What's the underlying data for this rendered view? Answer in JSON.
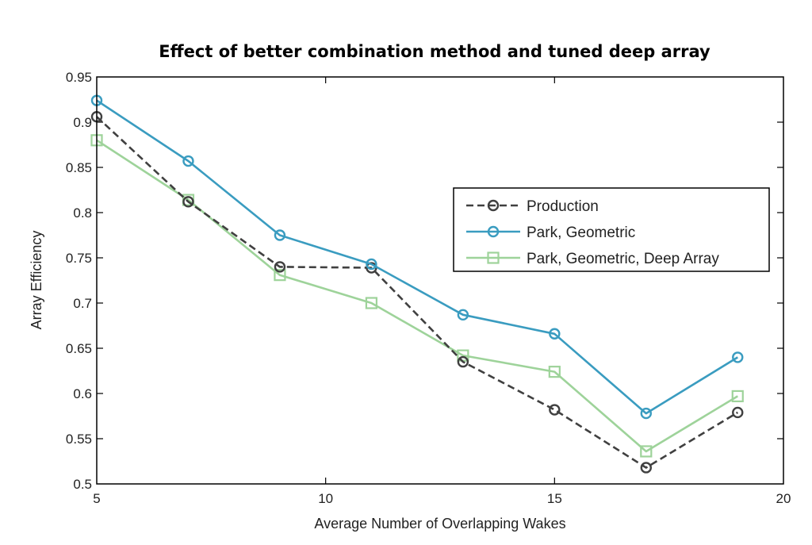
{
  "chart_data": {
    "type": "line",
    "title": "Effect of better combination method and tuned deep array",
    "xlabel": "Average Number of Overlapping Wakes",
    "ylabel": "Array Efficiency",
    "xlim": [
      5,
      20
    ],
    "ylim": [
      0.5,
      0.95
    ],
    "xticks": [
      5,
      10,
      15,
      20
    ],
    "xtick_labels": [
      "5",
      "10",
      "15",
      "20"
    ],
    "yticks": [
      0.5,
      0.55,
      0.6,
      0.65,
      0.7,
      0.75,
      0.8,
      0.85,
      0.9,
      0.95
    ],
    "ytick_labels": [
      "0.5",
      "0.55",
      "0.6",
      "0.65",
      "0.7",
      "0.75",
      "0.8",
      "0.85",
      "0.9",
      "0.95"
    ],
    "grid": false,
    "legend_position": "right",
    "x": [
      5,
      7,
      9,
      11,
      13,
      15,
      17,
      19
    ],
    "series": [
      {
        "name": "Production",
        "values": [
          0.906,
          0.812,
          0.74,
          0.739,
          0.635,
          0.582,
          0.518,
          0.579
        ],
        "color": "#404040",
        "line_style": "dashed",
        "marker": "circle"
      },
      {
        "name": "Park, Geometric",
        "values": [
          0.924,
          0.857,
          0.775,
          0.743,
          0.687,
          0.666,
          0.578,
          0.64
        ],
        "color": "#3a9cc0",
        "line_style": "solid",
        "marker": "circle"
      },
      {
        "name": "Park, Geometric, Deep Array",
        "values": [
          0.88,
          0.814,
          0.731,
          0.7,
          0.642,
          0.624,
          0.536,
          0.597
        ],
        "color": "#9ed39a",
        "line_style": "solid",
        "marker": "square"
      }
    ]
  }
}
